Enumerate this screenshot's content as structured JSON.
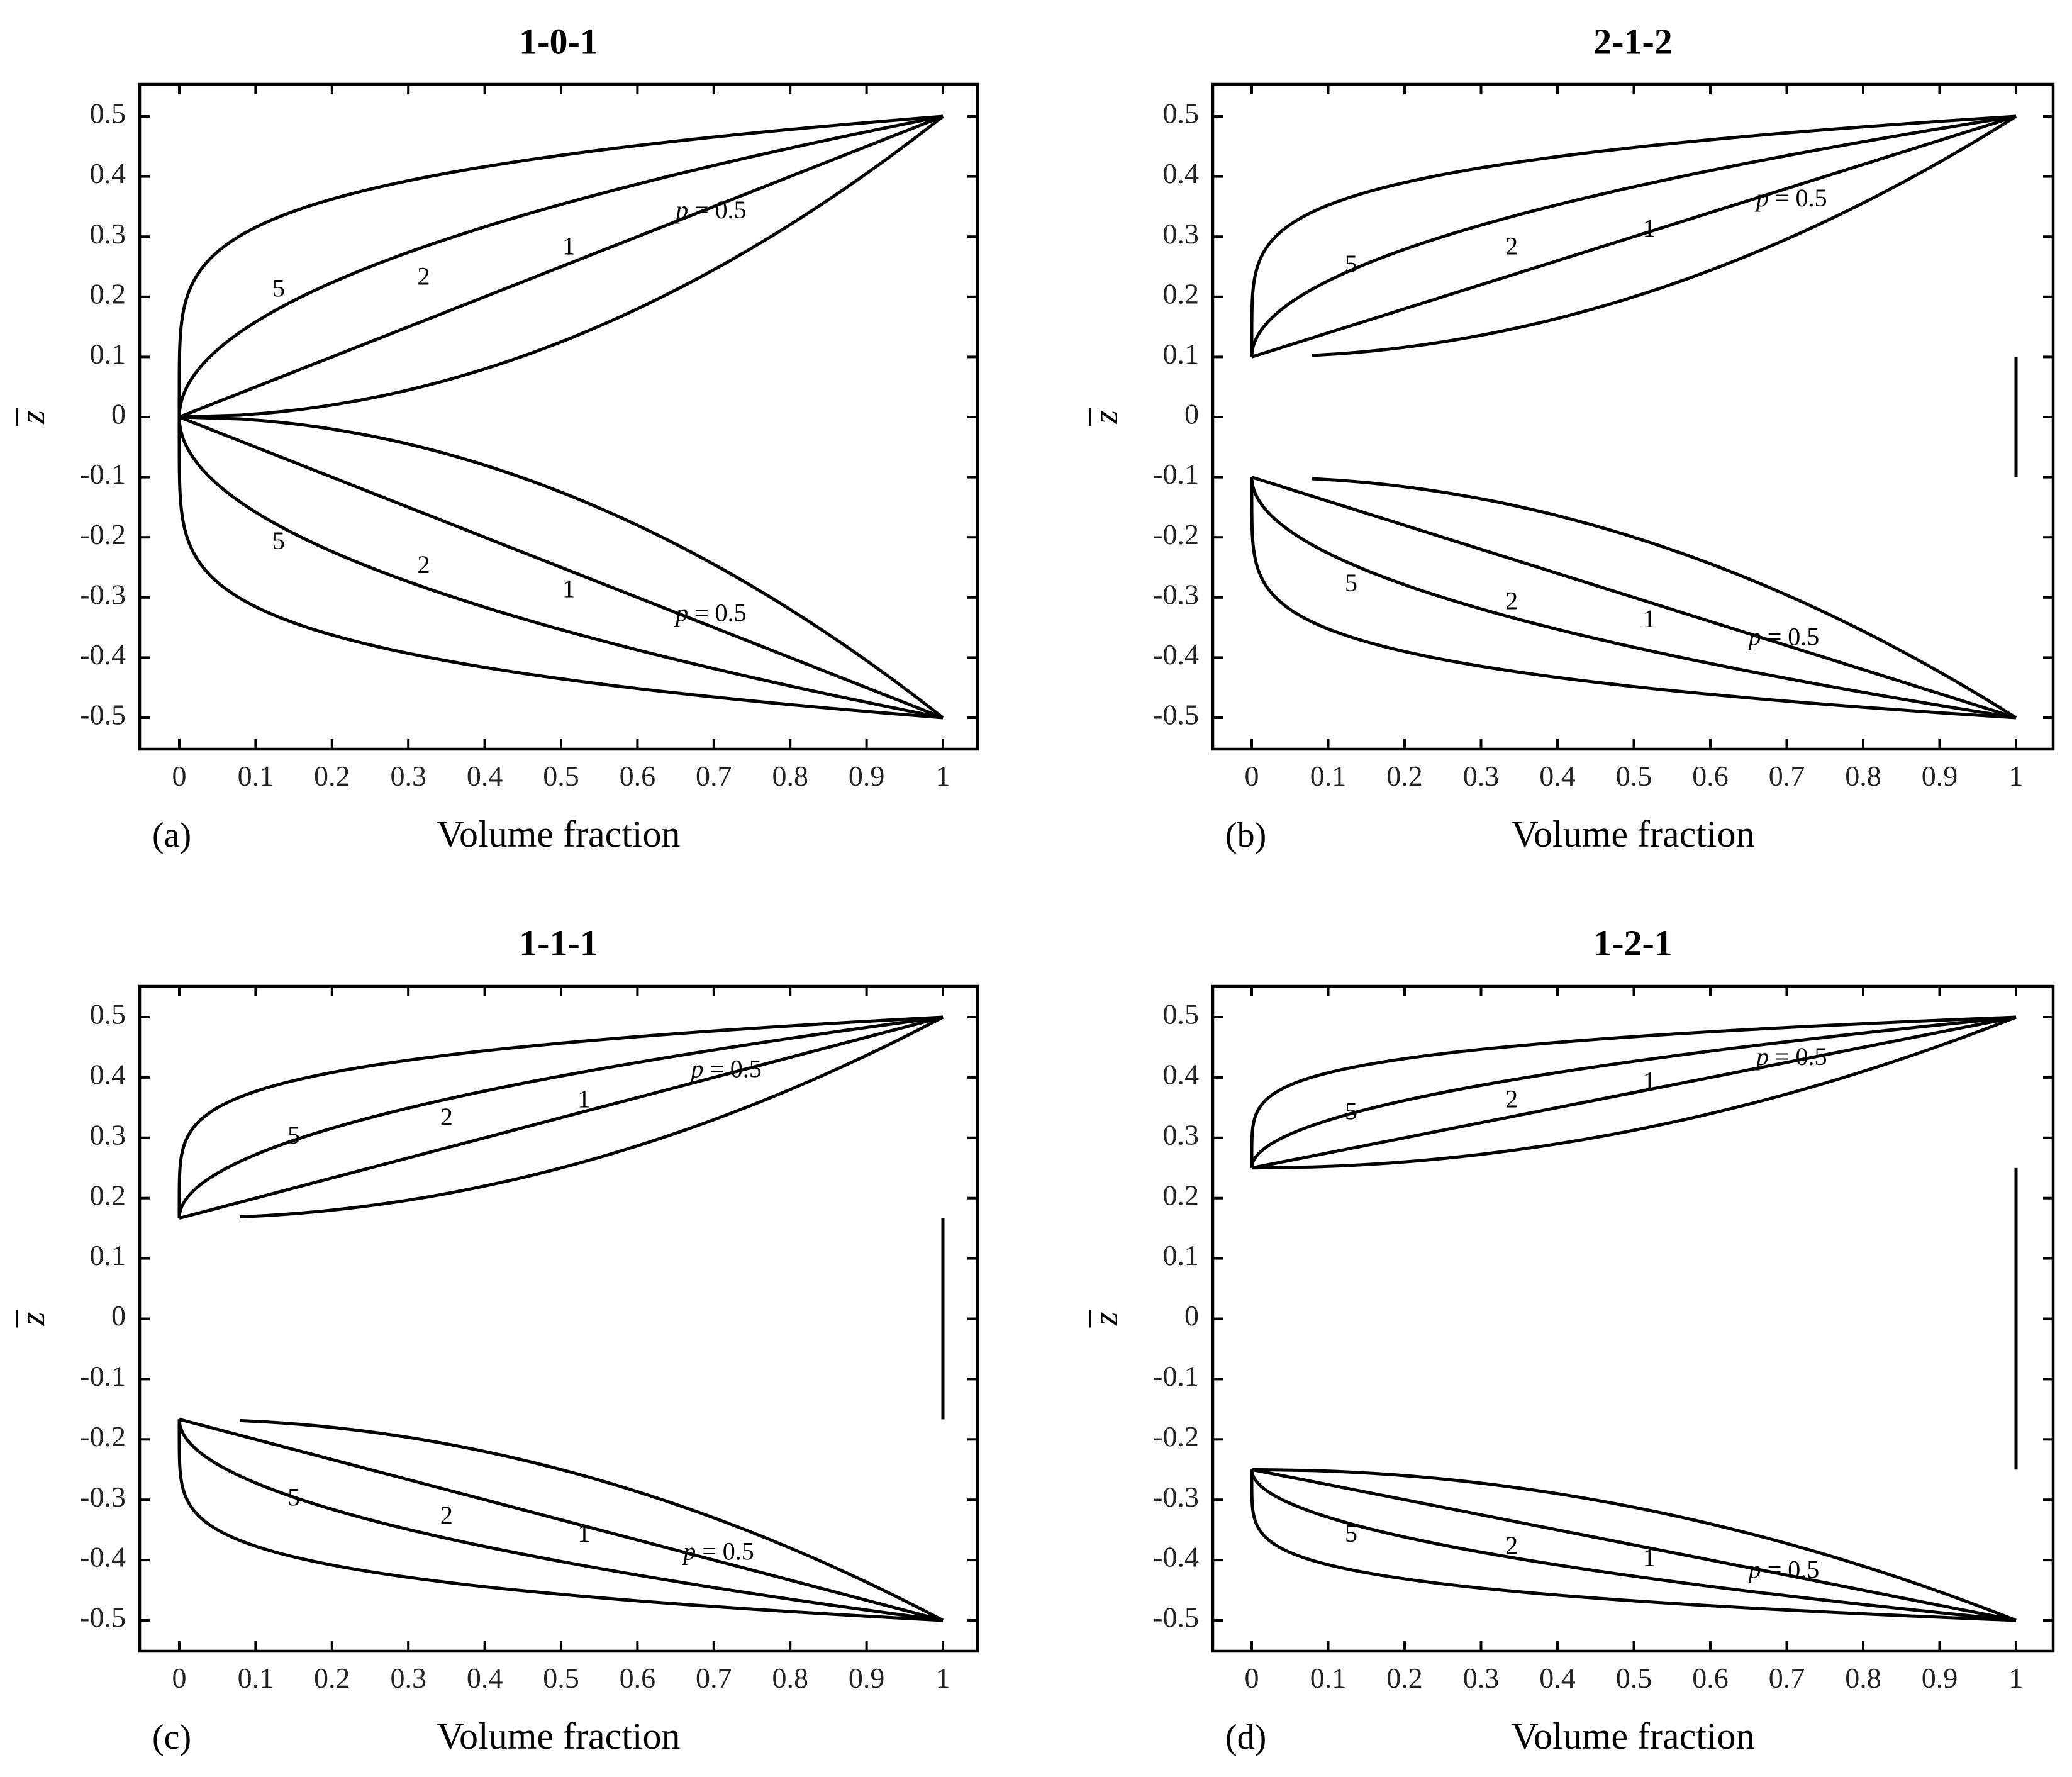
{
  "figure": {
    "x_tick_labels": [
      "0",
      "0.1",
      "0.2",
      "0.3",
      "0.4",
      "0.5",
      "0.6",
      "0.7",
      "0.8",
      "0.9",
      "1"
    ],
    "y_tick_labels": [
      "0.5",
      "0.4",
      "0.3",
      "0.2",
      "0.1",
      "0",
      "-0.1",
      "-0.2",
      "-0.3",
      "-0.4",
      "-0.5"
    ],
    "p_prefix": "p",
    "p_equals": " = 0.5"
  },
  "chart_data": [
    {
      "type": "line",
      "panel_label": "(a)",
      "title": "1-0-1",
      "xlabel": "Volume fraction",
      "ylabel": "z",
      "ylabel_overbar": true,
      "xlim": [
        0,
        1
      ],
      "ylim": [
        -0.5,
        0.5
      ],
      "scheme": "1-0-1",
      "core_half_thickness": 0.0,
      "series": [
        {
          "name": "p = 0.5",
          "p": 0.5,
          "label": "p = 0.5"
        },
        {
          "name": "p = 1",
          "p": 1,
          "label": "1"
        },
        {
          "name": "p = 2",
          "p": 2,
          "label": "2"
        },
        {
          "name": "p = 5",
          "p": 5,
          "label": "5"
        }
      ]
    },
    {
      "type": "line",
      "panel_label": "(b)",
      "title": "2-1-2",
      "xlabel": "Volume fraction",
      "ylabel": "z",
      "ylabel_overbar": true,
      "xlim": [
        0,
        1
      ],
      "ylim": [
        -0.5,
        0.5
      ],
      "scheme": "2-1-2",
      "core_half_thickness": 0.1,
      "series": [
        {
          "name": "p = 0.5",
          "p": 0.5,
          "label": "p = 0.5"
        },
        {
          "name": "p = 1",
          "p": 1,
          "label": "1"
        },
        {
          "name": "p = 2",
          "p": 2,
          "label": "2"
        },
        {
          "name": "p = 5",
          "p": 5,
          "label": "5"
        }
      ]
    },
    {
      "type": "line",
      "panel_label": "(c)",
      "title": "1-1-1",
      "xlabel": "Volume fraction",
      "ylabel": "z",
      "ylabel_overbar": true,
      "xlim": [
        0,
        1
      ],
      "ylim": [
        -0.5,
        0.5
      ],
      "scheme": "1-1-1",
      "core_half_thickness": 0.1667,
      "series": [
        {
          "name": "p = 0.5",
          "p": 0.5,
          "label": "p = 0.5"
        },
        {
          "name": "p = 1",
          "p": 1,
          "label": "1"
        },
        {
          "name": "p = 2",
          "p": 2,
          "label": "2"
        },
        {
          "name": "p = 5",
          "p": 5,
          "label": "5"
        }
      ]
    },
    {
      "type": "line",
      "panel_label": "(d)",
      "title": "1-2-1",
      "xlabel": "Volume fraction",
      "ylabel": "z",
      "ylabel_overbar": true,
      "xlim": [
        0,
        1
      ],
      "ylim": [
        -0.5,
        0.5
      ],
      "scheme": "1-2-1",
      "core_half_thickness": 0.25,
      "series": [
        {
          "name": "p = 0.5",
          "p": 0.5,
          "label": "p = 0.5"
        },
        {
          "name": "p = 1",
          "p": 1,
          "label": "1"
        },
        {
          "name": "p = 2",
          "p": 2,
          "label": "2"
        },
        {
          "name": "p = 5",
          "p": 5,
          "label": "5"
        }
      ]
    }
  ]
}
